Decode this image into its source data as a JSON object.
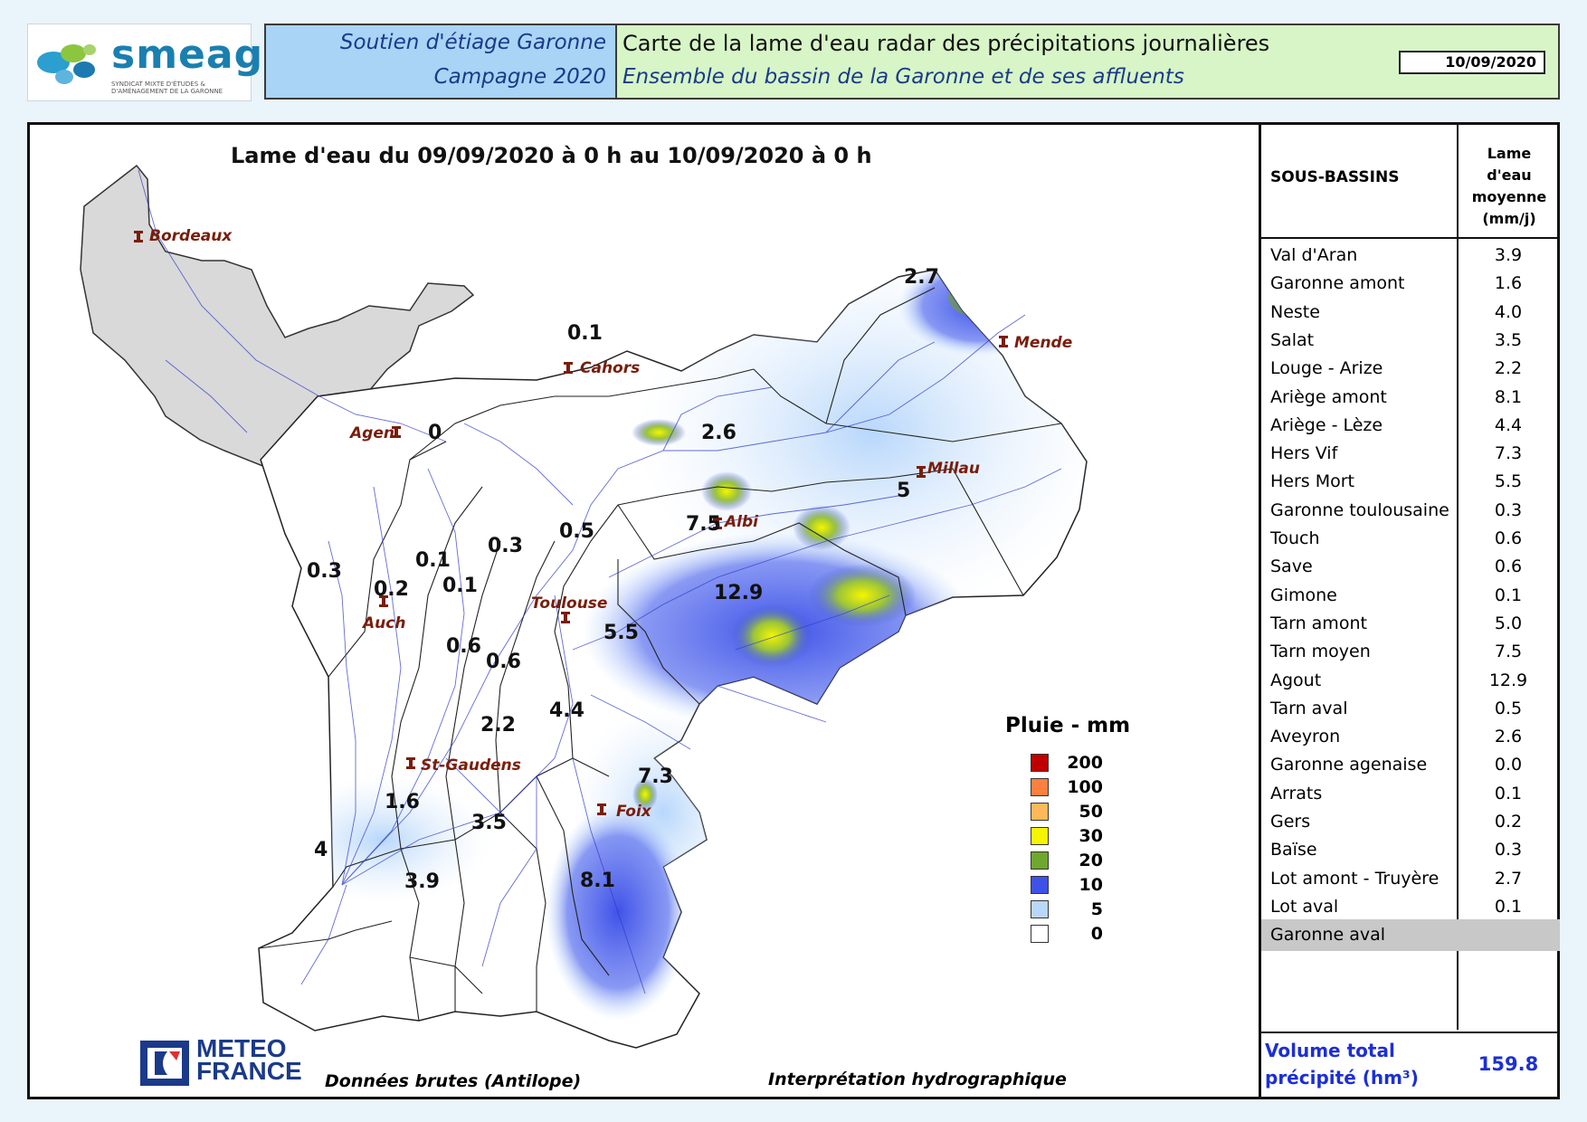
{
  "header": {
    "logo_name": "smeag",
    "logo_subtitle": "SYNDICAT MIXTE D'ÉTUDES & D'AMÉNAGEMENT DE LA GARONNE",
    "left_line1": "Soutien d'étiage Garonne",
    "left_line2": "Campagne 2020",
    "title": "Carte de la lame d'eau radar des précipitations journalières",
    "subtitle": "Ensemble du bassin de la Garonne et de ses affluents",
    "date": "10/09/2020"
  },
  "map": {
    "title": "Lame d'eau du 09/09/2020 à 0 h au 10/09/2020 à 0 h",
    "cities": [
      {
        "name": "Bordeaux"
      },
      {
        "name": "Cahors"
      },
      {
        "name": "Mende"
      },
      {
        "name": "Agen"
      },
      {
        "name": "Millau"
      },
      {
        "name": "Albi"
      },
      {
        "name": "Toulouse"
      },
      {
        "name": "Auch"
      },
      {
        "name": "St-Gaudens"
      },
      {
        "name": "Foix"
      }
    ],
    "basin_values": [
      "2.7",
      "0.1",
      "0",
      "2.6",
      "5",
      "7.5",
      "0.5",
      "0.3",
      "0.1",
      "0.3",
      "0.2",
      "0.1",
      "12.9",
      "5.5",
      "0.6",
      "0.6",
      "4.4",
      "2.2",
      "7.3",
      "1.6",
      "3.5",
      "4",
      "3.9",
      "8.1"
    ]
  },
  "legend": {
    "title": "Pluie - mm",
    "items": [
      {
        "value": "200",
        "color": "#c00000"
      },
      {
        "value": "100",
        "color": "#ff7f3f"
      },
      {
        "value": "50",
        "color": "#ffb857"
      },
      {
        "value": "30",
        "color": "#f5f500"
      },
      {
        "value": "20",
        "color": "#6fa82c"
      },
      {
        "value": "10",
        "color": "#3f52e8"
      },
      {
        "value": "5",
        "color": "#b8d7fb"
      },
      {
        "value": "0",
        "color": "#ffffff"
      }
    ]
  },
  "footer": {
    "meteo_line1": "METEO",
    "meteo_line2": "FRANCE",
    "source": "Données brutes (Antilope)",
    "interpretation": "Interprétation hydrographique"
  },
  "table": {
    "col1_header": "SOUS-BASSINS",
    "col2_header_line1": "Lame d'eau",
    "col2_header_line2": "moyenne",
    "col2_header_line3": "(mm/j)",
    "rows": [
      {
        "name": "Val d'Aran",
        "value": "3.9"
      },
      {
        "name": "Garonne amont",
        "value": "1.6"
      },
      {
        "name": "Neste",
        "value": "4.0"
      },
      {
        "name": "Salat",
        "value": "3.5"
      },
      {
        "name": "Louge - Arize",
        "value": "2.2"
      },
      {
        "name": "Ariège amont",
        "value": "8.1"
      },
      {
        "name": "Ariège - Lèze",
        "value": "4.4"
      },
      {
        "name": "Hers Vif",
        "value": "7.3"
      },
      {
        "name": "Hers Mort",
        "value": "5.5"
      },
      {
        "name": "Garonne toulousaine",
        "value": "0.3"
      },
      {
        "name": "Touch",
        "value": "0.6"
      },
      {
        "name": "Save",
        "value": "0.6"
      },
      {
        "name": "Gimone",
        "value": "0.1"
      },
      {
        "name": "Tarn amont",
        "value": "5.0"
      },
      {
        "name": "Tarn moyen",
        "value": "7.5"
      },
      {
        "name": "Agout",
        "value": "12.9"
      },
      {
        "name": "Tarn aval",
        "value": "0.5"
      },
      {
        "name": "Aveyron",
        "value": "2.6"
      },
      {
        "name": "Garonne agenaise",
        "value": "0.0"
      },
      {
        "name": "Arrats",
        "value": "0.1"
      },
      {
        "name": "Gers",
        "value": "0.2"
      },
      {
        "name": "Baïse",
        "value": "0.3"
      },
      {
        "name": "Lot amont - Truyère",
        "value": "2.7"
      },
      {
        "name": "Lot aval",
        "value": "0.1"
      },
      {
        "name": "Garonne aval",
        "value": ""
      }
    ],
    "volume_label_line1": "Volume total",
    "volume_label_line2": "précipité (hm³)",
    "volume_value": "159.8"
  }
}
